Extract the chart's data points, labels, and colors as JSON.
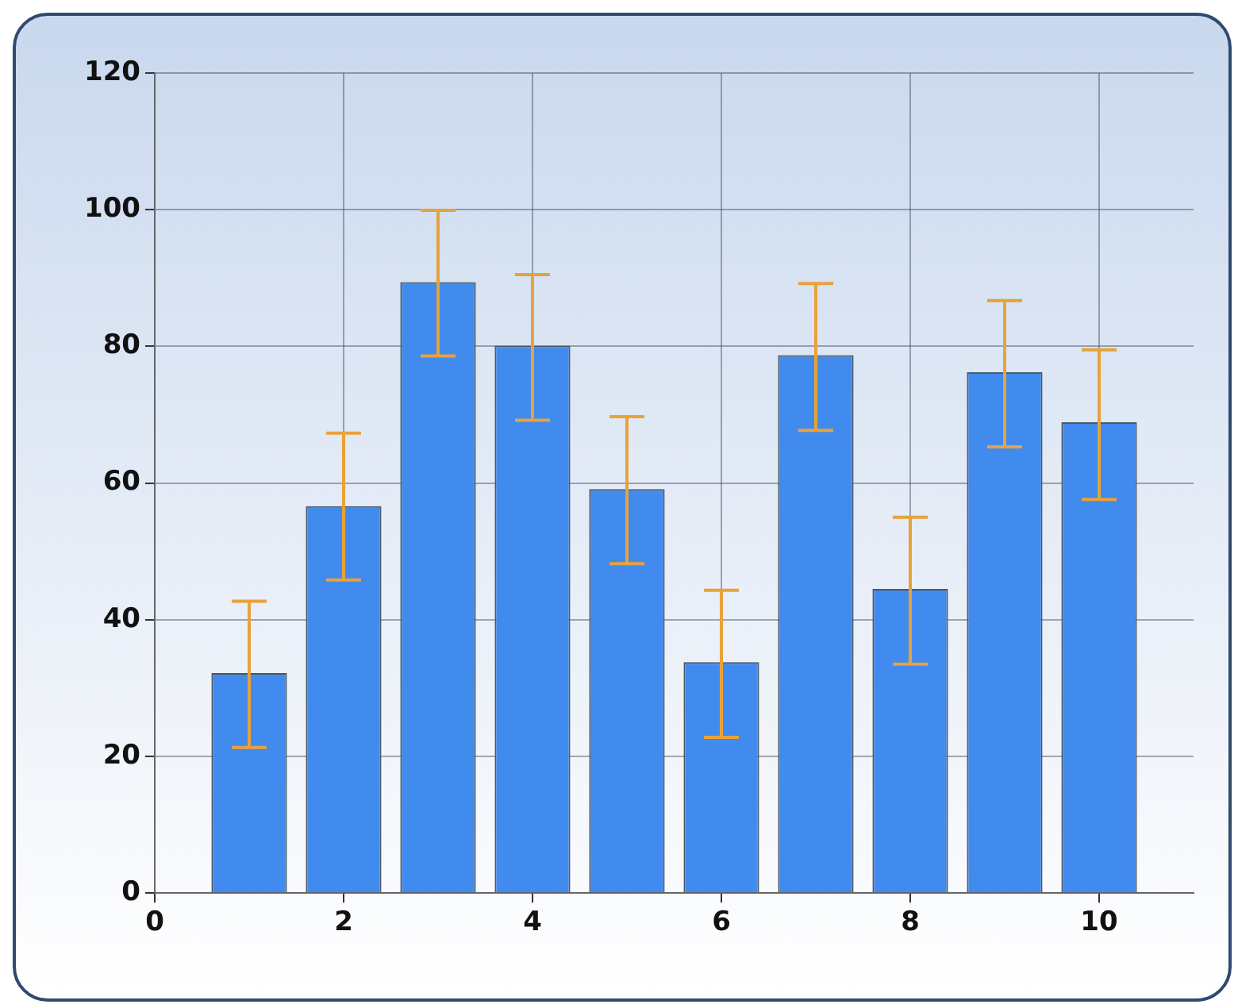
{
  "chart_data": {
    "type": "bar",
    "x": [
      1,
      2,
      3,
      4,
      5,
      6,
      7,
      8,
      9,
      10
    ],
    "values": [
      32.2,
      56.6,
      89.4,
      80.1,
      59.1,
      33.8,
      78.7,
      44.5,
      76.2,
      68.9
    ],
    "errors": [
      [
        21.3,
        42.7
      ],
      [
        45.8,
        67.3
      ],
      [
        78.6,
        99.9
      ],
      [
        69.2,
        90.5
      ],
      [
        48.2,
        69.7
      ],
      [
        22.8,
        44.3
      ],
      [
        67.7,
        89.2
      ],
      [
        33.5,
        55.0
      ],
      [
        65.3,
        86.7
      ],
      [
        57.6,
        79.5
      ]
    ],
    "color": "#418bee",
    "xlim": [
      0,
      11
    ],
    "xticks": [
      0,
      2,
      4,
      6,
      8,
      10
    ],
    "ylim": [
      0,
      120
    ],
    "yticks": [
      0,
      20,
      40,
      60,
      80,
      100,
      120
    ],
    "grid": true,
    "legend": false
  }
}
